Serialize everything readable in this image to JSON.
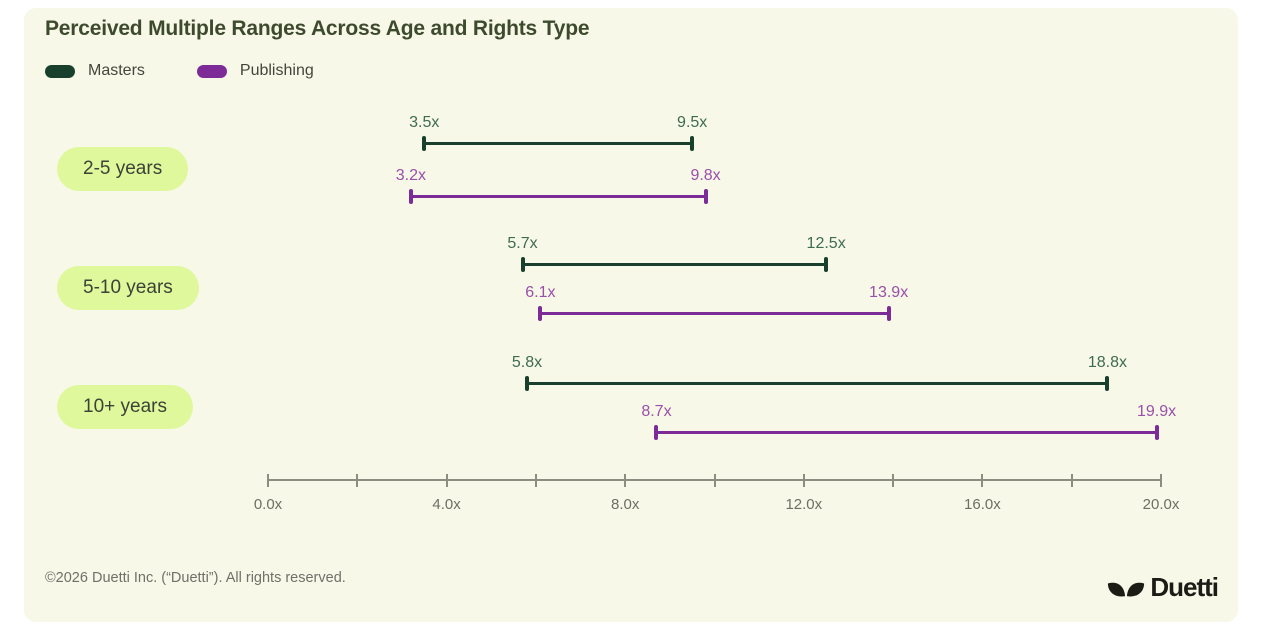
{
  "page": {
    "title": "Perceived Multiple Ranges Across Age and Rights Type"
  },
  "footer": {
    "copyright": "©2026 Duetti Inc. (“Duetti”). All rights reserved.",
    "logo_text": "Duetti"
  },
  "colors": {
    "card_background": "#F7F8E8",
    "page_background": "#FFFFFF",
    "masters": "#18402C",
    "masters_label": "#3F6B4F",
    "publishing": "#7D2B96",
    "publishing_label": "#9A4FA8",
    "category_pill_bg": "#DFF89C",
    "axis": "#8C8C80",
    "axis_label": "#6E6E64"
  },
  "chart_data": {
    "type": "bar",
    "subtype": "horizontal-range-dumbbell",
    "title": "Perceived Multiple Ranges Across Age and Rights Type",
    "categories": [
      "2-5 years",
      "5-10 years",
      "10+ years"
    ],
    "series": [
      {
        "name": "Masters",
        "color": "#18402C",
        "label_color": "#3F6B4F",
        "ranges": [
          [
            3.5,
            9.5
          ],
          [
            5.7,
            12.5
          ],
          [
            5.8,
            18.8
          ]
        ]
      },
      {
        "name": "Publishing",
        "color": "#7D2B96",
        "label_color": "#9A4FA8",
        "ranges": [
          [
            3.2,
            9.8
          ],
          [
            6.1,
            13.9
          ],
          [
            8.7,
            19.9
          ]
        ]
      }
    ],
    "value_suffix": "x",
    "value_decimals": 1,
    "xlabel": "",
    "ylabel": "",
    "xlim": [
      0,
      20
    ],
    "x_minor_tick_step": 2,
    "x_labeled_ticks": [
      0,
      4,
      8,
      12,
      16,
      20
    ],
    "x_tick_labels": [
      "0.0x",
      "4.0x",
      "8.0x",
      "12.0x",
      "16.0x",
      "20.0x"
    ],
    "grid": false,
    "legend_position": "top-left"
  }
}
